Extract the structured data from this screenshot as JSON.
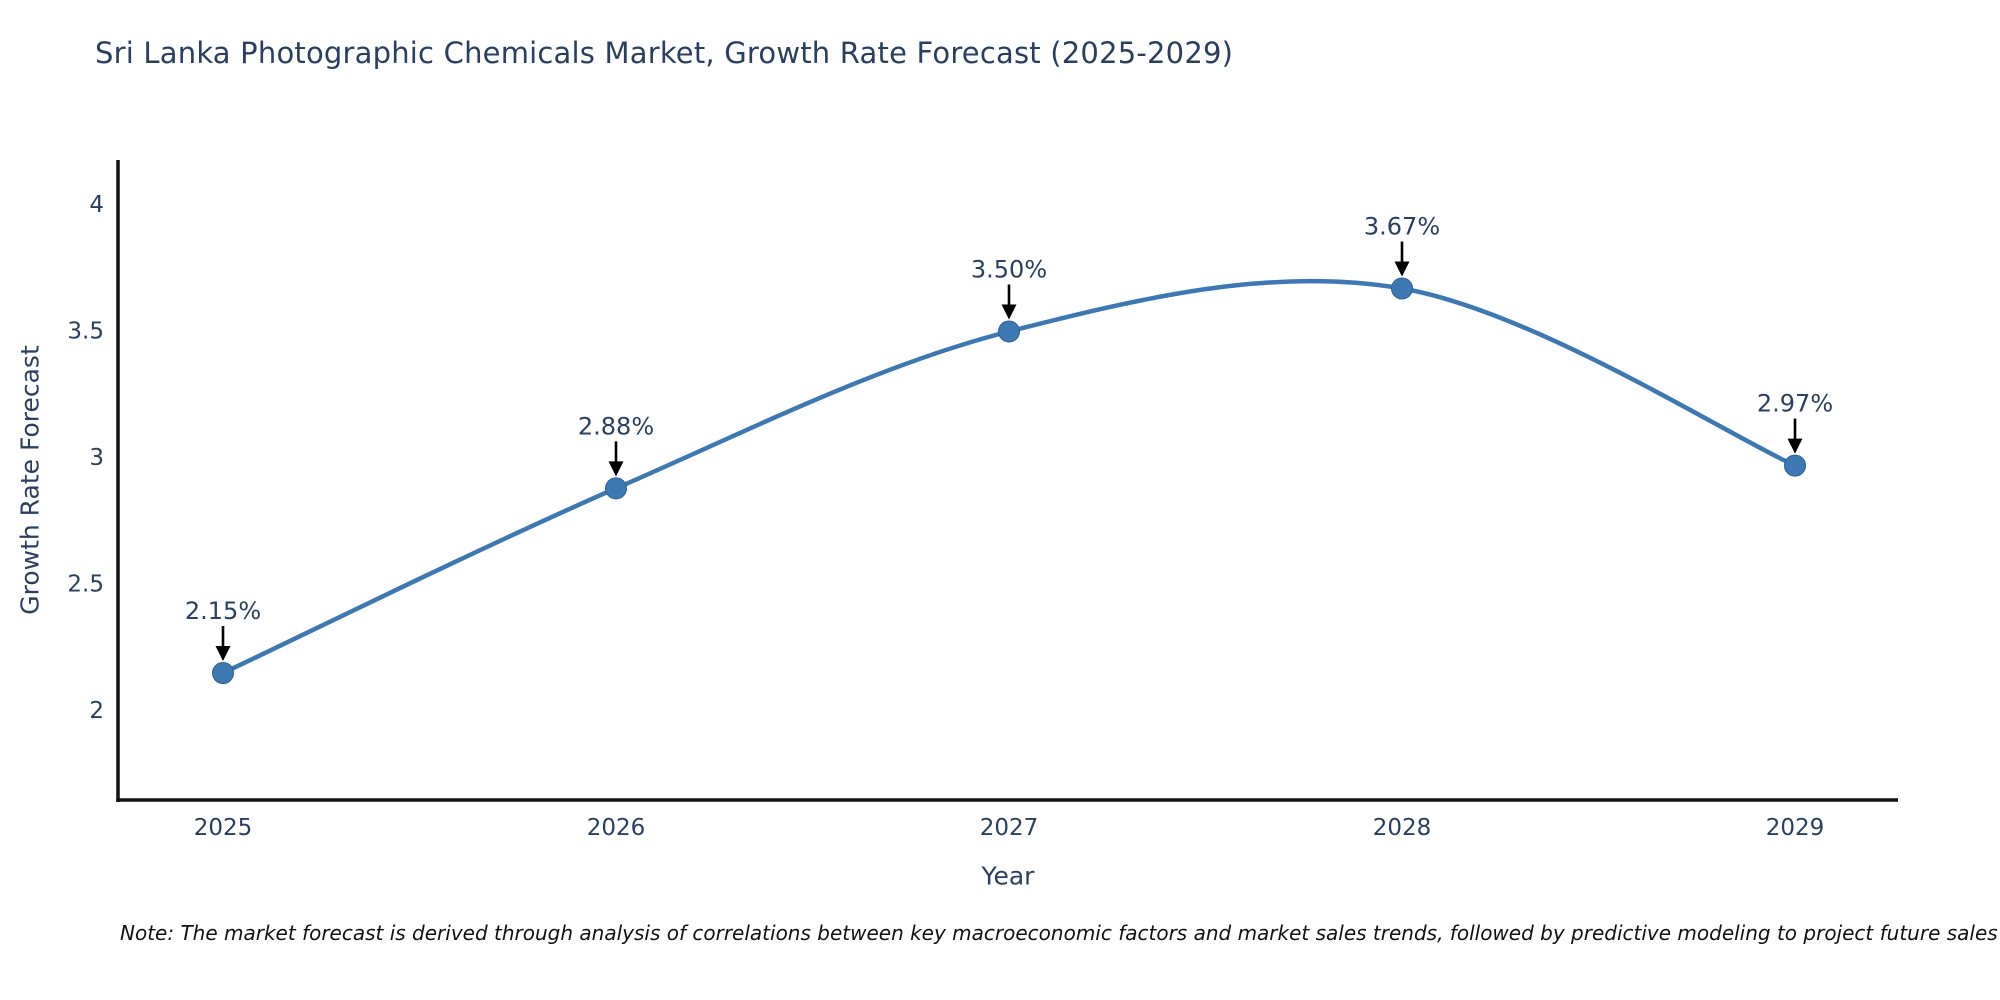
{
  "chart_data": {
    "type": "line",
    "title": "Sri Lanka Photographic Chemicals Market, Growth Rate Forecast (2025-2029)",
    "xlabel": "Year",
    "ylabel": "Growth Rate Forecast",
    "x": [
      2025,
      2026,
      2027,
      2028,
      2029
    ],
    "values": [
      2.15,
      2.88,
      3.5,
      3.67,
      2.97
    ],
    "point_labels": [
      "2.15%",
      "2.88%",
      "3.50%",
      "3.67%",
      "2.97%"
    ],
    "yticks": [
      2,
      2.5,
      3,
      3.5,
      4
    ],
    "ytick_labels": [
      "2",
      "2.5",
      "3",
      "3.5",
      "4"
    ],
    "xtick_labels": [
      "2025",
      "2026",
      "2027",
      "2028",
      "2029"
    ],
    "ylim": [
      1.65,
      4.18
    ],
    "line_shape": "spline",
    "grid": false,
    "legend_position": "none",
    "colors": {
      "line": "#3d78b2",
      "marker": "#3d78b2",
      "marker_edge": "#2f5f93",
      "annotation_arrow": "#000000",
      "text": "#2a3f5f",
      "axis_line": "#111111"
    }
  },
  "note": {
    "text": "Note: The market forecast is derived through analysis of correlations between key macroeconomic factors and market sales trends, followed by predictive modeling to project future sales"
  }
}
